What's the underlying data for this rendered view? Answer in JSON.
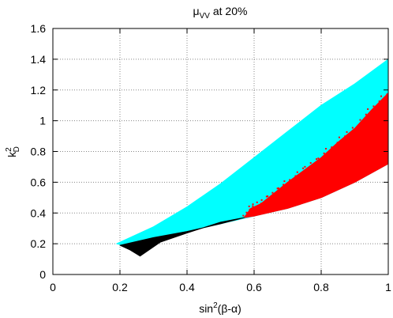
{
  "chart_data": {
    "type": "scatter",
    "title": {
      "main": "μ",
      "sub": "VV",
      "rest": " at 20%"
    },
    "xlabel": {
      "base": "sin",
      "sup": "2",
      "rest": "(β-α)"
    },
    "ylabel": {
      "base": "k",
      "sup": "2",
      "sub": "D"
    },
    "xlim": [
      0,
      1
    ],
    "ylim": [
      0,
      1.6
    ],
    "xticks": [
      "0",
      "0.2",
      "0.4",
      "0.6",
      "0.8",
      "1"
    ],
    "yticks": [
      "0",
      "0.2",
      "0.4",
      "0.6",
      "0.8",
      "1",
      "1.2",
      "1.4",
      "1.6"
    ],
    "grid": true,
    "series": [
      {
        "color": "#00ffff",
        "region": [
          [
            0.19,
            0.2
          ],
          [
            0.3,
            0.31
          ],
          [
            0.4,
            0.44
          ],
          [
            0.5,
            0.59
          ],
          [
            0.6,
            0.76
          ],
          [
            0.7,
            0.93
          ],
          [
            0.8,
            1.1
          ],
          [
            0.9,
            1.24
          ],
          [
            1.0,
            1.4
          ],
          [
            1.0,
            0.72
          ],
          [
            0.9,
            0.6
          ],
          [
            0.8,
            0.5
          ],
          [
            0.7,
            0.43
          ],
          [
            0.6,
            0.38
          ],
          [
            0.5,
            0.33
          ],
          [
            0.4,
            0.28
          ],
          [
            0.3,
            0.24
          ],
          [
            0.21,
            0.19
          ]
        ]
      },
      {
        "color": "#ff0000",
        "region": [
          [
            0.57,
            0.37
          ],
          [
            0.59,
            0.43
          ],
          [
            0.62,
            0.46
          ],
          [
            0.66,
            0.53
          ],
          [
            0.7,
            0.6
          ],
          [
            0.75,
            0.68
          ],
          [
            0.8,
            0.76
          ],
          [
            0.85,
            0.86
          ],
          [
            0.9,
            0.95
          ],
          [
            0.95,
            1.07
          ],
          [
            1.0,
            1.18
          ],
          [
            1.0,
            0.72
          ],
          [
            0.9,
            0.6
          ],
          [
            0.8,
            0.5
          ],
          [
            0.7,
            0.43
          ],
          [
            0.6,
            0.38
          ]
        ]
      },
      {
        "color": "#000000",
        "region": [
          [
            0.2,
            0.19
          ],
          [
            0.3,
            0.24
          ],
          [
            0.4,
            0.28
          ],
          [
            0.5,
            0.33
          ],
          [
            0.57,
            0.37
          ],
          [
            0.5,
            0.34
          ],
          [
            0.4,
            0.27
          ],
          [
            0.32,
            0.21
          ],
          [
            0.26,
            0.12
          ],
          [
            0.23,
            0.16
          ]
        ]
      }
    ]
  }
}
